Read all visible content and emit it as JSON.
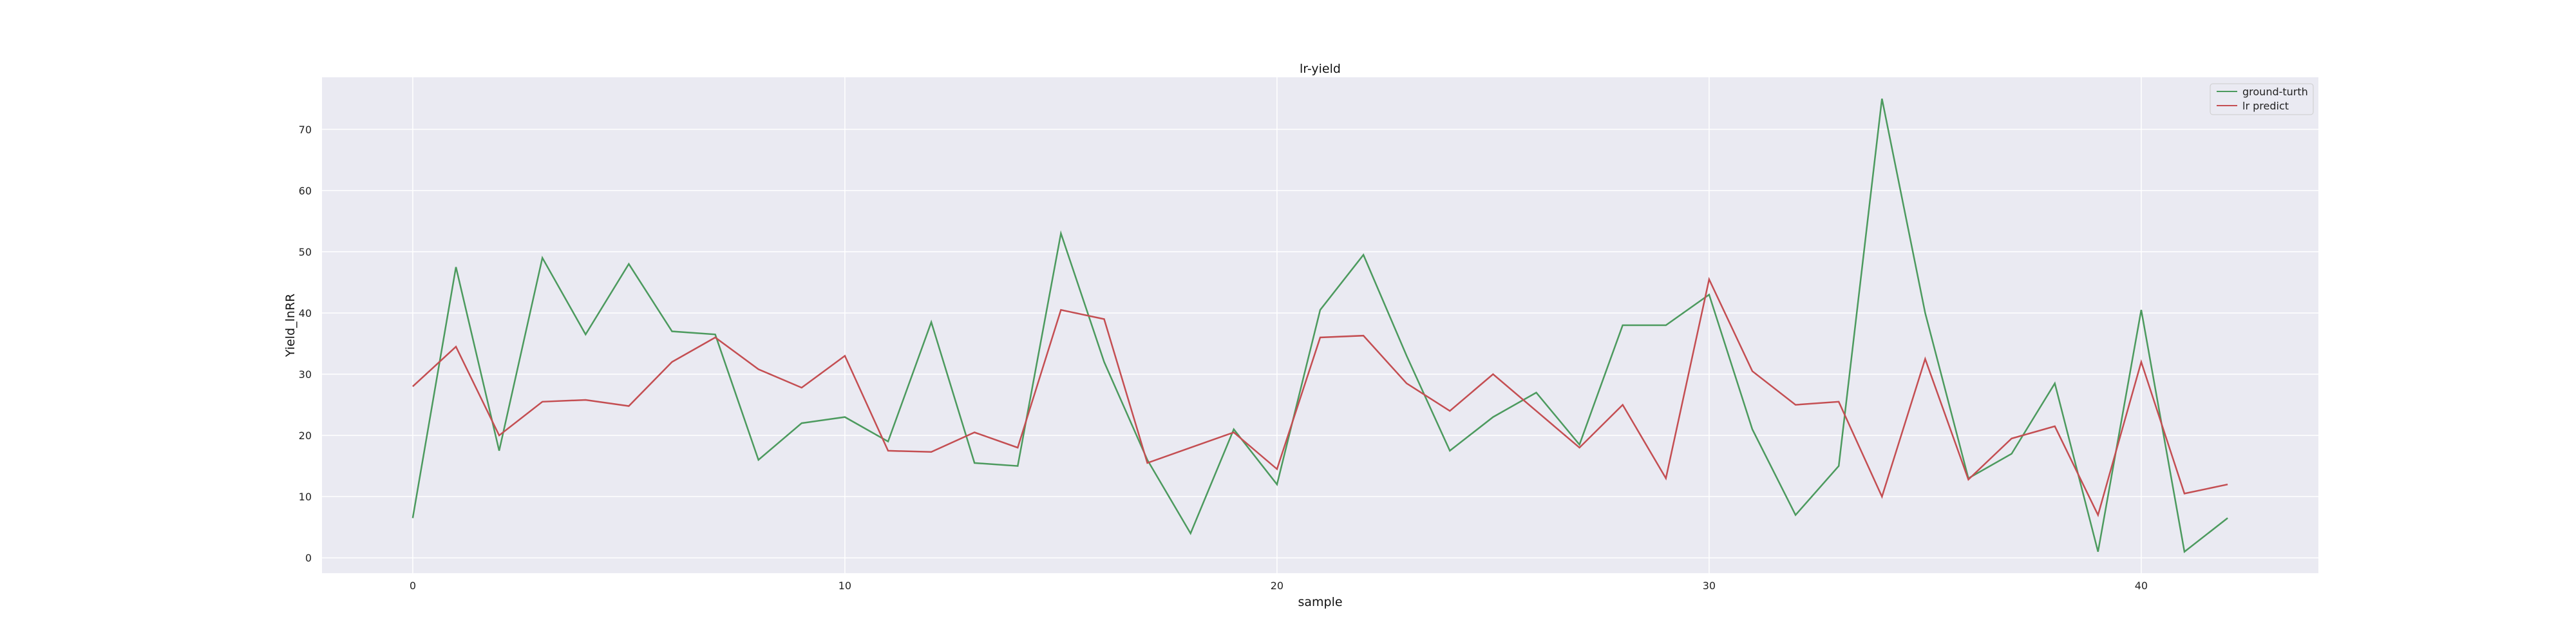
{
  "chart_data": {
    "type": "line",
    "title": "lr-yield",
    "xlabel": "sample",
    "ylabel": "Yield_lnRR",
    "xlim": [
      -2.1,
      44.1
    ],
    "ylim": [
      -2.5,
      78.5
    ],
    "xticks": [
      0,
      10,
      20,
      30,
      40
    ],
    "yticks": [
      0,
      10,
      20,
      30,
      40,
      50,
      60,
      70
    ],
    "grid": true,
    "legend_position": "top-right",
    "background_color": "#eaeaf2",
    "x": [
      0,
      1,
      2,
      3,
      4,
      5,
      6,
      7,
      8,
      9,
      10,
      11,
      12,
      13,
      14,
      15,
      16,
      17,
      18,
      19,
      20,
      21,
      22,
      23,
      24,
      25,
      26,
      27,
      28,
      29,
      30,
      31,
      32,
      33,
      34,
      35,
      36,
      37,
      38,
      39,
      40,
      41,
      42
    ],
    "series": [
      {
        "name": "ground-turth",
        "color": "#4c9a5e",
        "values": [
          6.5,
          47.5,
          17.5,
          49,
          36.5,
          48,
          37,
          36.5,
          16,
          22,
          23,
          19,
          38.5,
          15.5,
          15,
          53,
          32,
          16,
          4,
          21,
          12,
          40.5,
          49.5,
          33,
          17.5,
          23,
          27,
          18.5,
          38,
          38,
          43,
          21,
          7,
          15,
          75,
          40,
          13,
          17,
          28.5,
          1,
          40.5,
          1,
          6.5
        ]
      },
      {
        "name": "lr predict",
        "color": "#c44e52",
        "values": [
          28,
          34.5,
          20,
          25.5,
          25.8,
          24.8,
          32,
          36,
          30.8,
          27.8,
          33,
          17.5,
          17.3,
          20.5,
          18,
          40.5,
          39,
          15.5,
          18,
          20.5,
          14.5,
          36,
          36.3,
          28.5,
          24,
          30,
          24,
          18,
          25,
          13,
          45.5,
          30.5,
          25,
          25.5,
          10,
          32.5,
          12.8,
          19.5,
          21.5,
          7,
          32,
          10.5,
          12
        ]
      }
    ]
  }
}
